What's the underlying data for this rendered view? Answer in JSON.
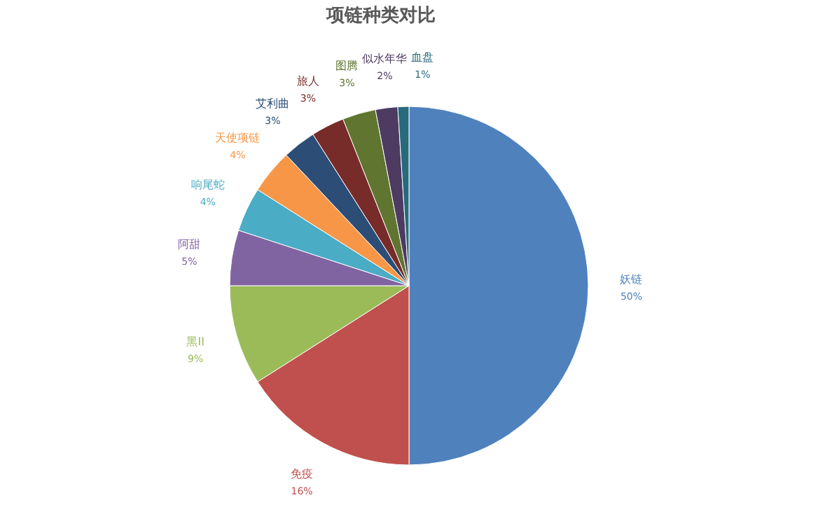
{
  "chart_data": {
    "type": "pie",
    "title": "项链种类对比",
    "categories": [
      "妖链",
      "免疫",
      "黑II",
      "阿甜",
      "响尾蛇",
      "天使项链",
      "艾利曲",
      "旅人",
      "图腾",
      "似水年华",
      "血盘"
    ],
    "values": [
      50,
      16,
      9,
      5,
      4,
      4,
      3,
      3,
      3,
      2,
      1
    ],
    "value_labels": [
      "50%",
      "16%",
      "9%",
      "5%",
      "4%",
      "4%",
      "3%",
      "3%",
      "3%",
      "2%",
      "1%"
    ],
    "colors": [
      "#4f81bd",
      "#c0504d",
      "#9bbb59",
      "#8064a2",
      "#4bacc6",
      "#f79646",
      "#2c4d75",
      "#772c2a",
      "#5f7530",
      "#4d3b62",
      "#276a7c"
    ]
  }
}
